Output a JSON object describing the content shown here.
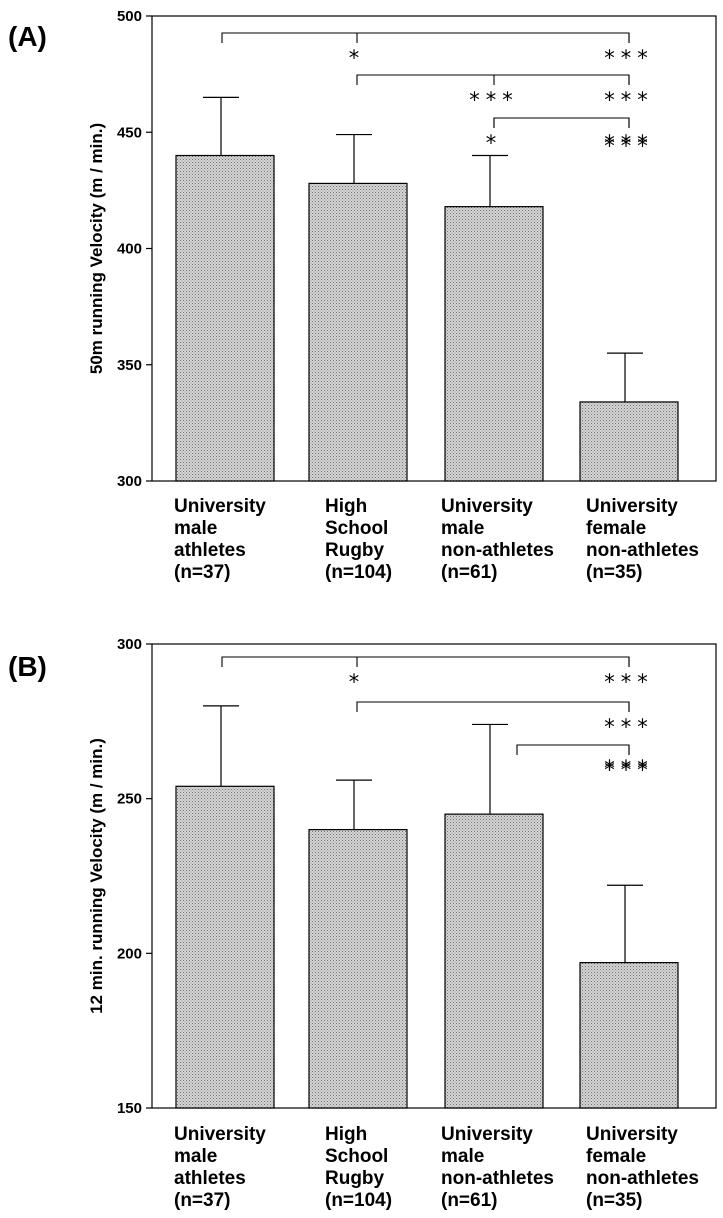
{
  "chart_data": [
    {
      "type": "bar",
      "panel_label": "(A)",
      "ylabel": "50m running Velocity (m / min.)",
      "ylim": [
        300,
        500
      ],
      "yticks": [
        "300",
        "350",
        "400",
        "450",
        "500"
      ],
      "categories": [
        [
          "University",
          "male",
          "athletes",
          "(n=37)"
        ],
        [
          "High",
          "School",
          "Rugby",
          "(n=104)"
        ],
        [
          "University",
          "male",
          "non-athletes",
          "(n=61)"
        ],
        [
          "University",
          "female",
          "non-athletes",
          "(n=35)"
        ]
      ],
      "values": [
        440,
        428,
        418,
        334
      ],
      "errors": [
        25,
        21,
        22,
        21
      ],
      "significance": [
        {
          "from": 0,
          "to": 3,
          "left_mark": "*",
          "right_mark": "***"
        },
        {
          "from": 1,
          "to": 3,
          "mid_mark": "***",
          "right_mark": "***"
        },
        {
          "from": 2,
          "to": 3,
          "left_mark": "*",
          "right_mark": "***"
        }
      ]
    },
    {
      "type": "bar",
      "panel_label": "(B)",
      "ylabel": "12 min. running Velocity (m / min.)",
      "ylim": [
        150,
        300
      ],
      "yticks": [
        "150",
        "200",
        "250",
        "300"
      ],
      "categories": [
        [
          "University",
          "male",
          "athletes",
          "(n=37)"
        ],
        [
          "High",
          "School",
          "Rugby",
          "(n=104)"
        ],
        [
          "University",
          "male",
          "non-athletes",
          "(n=61)"
        ],
        [
          "University",
          "female",
          "non-athletes",
          "(n=35)"
        ]
      ],
      "values": [
        254,
        240,
        245,
        197
      ],
      "errors": [
        26,
        16,
        29,
        25
      ],
      "significance": [
        {
          "from": 0,
          "to": 3,
          "left_mark": "*",
          "right_mark": "***"
        },
        {
          "from": 1,
          "to": 3,
          "right_mark": "***"
        },
        {
          "from": 2,
          "to": 3,
          "right_mark": "***"
        }
      ]
    }
  ]
}
